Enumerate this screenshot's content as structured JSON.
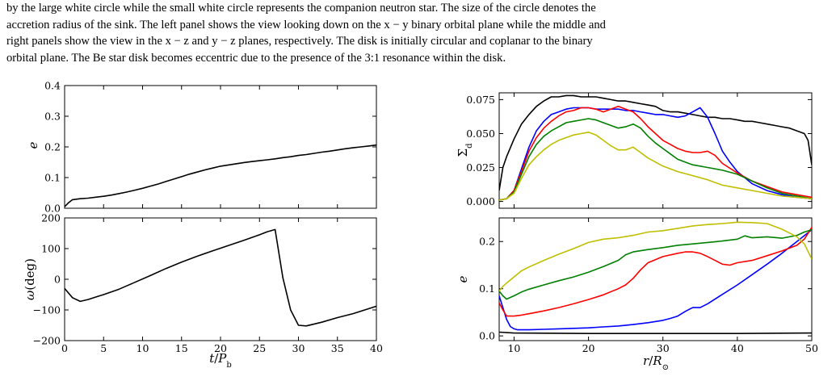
{
  "caption": {
    "lines": [
      "by the large white circle while the small white circle represents the companion neutron star. The size of the circle denotes the",
      "accretion radius of the sink. The left panel shows the view looking down on the x − y binary orbital plane while the middle and",
      "right panels show the view in the x − z and y − z planes, respectively. The disk is initially circular and coplanar to the binary",
      "orbital plane. The Be star disk becomes eccentric due to the presence of the 3:1 resonance within the disk."
    ]
  },
  "chart_data": [
    {
      "type": "line",
      "panel": "top-left",
      "ylabel": "e",
      "xlim": [
        0,
        40
      ],
      "ylim": [
        0,
        0.4
      ],
      "xticks": [],
      "yticks": [
        "0.0",
        "0.1",
        "0.2",
        "0.3",
        "0.4"
      ],
      "grid": false,
      "series": [
        {
          "color": "#000000",
          "x": [
            0,
            0.5,
            1,
            2,
            3,
            4,
            5,
            6,
            7,
            8,
            9,
            10,
            11,
            12,
            13,
            14,
            15,
            16,
            17,
            18,
            19,
            20,
            21,
            22,
            23,
            24,
            25,
            26,
            27,
            28,
            29,
            30,
            31,
            32,
            33,
            34,
            35,
            36,
            37,
            38,
            39,
            40
          ],
          "y": [
            0.005,
            0.018,
            0.028,
            0.031,
            0.033,
            0.036,
            0.039,
            0.043,
            0.048,
            0.053,
            0.059,
            0.065,
            0.072,
            0.079,
            0.087,
            0.095,
            0.103,
            0.111,
            0.118,
            0.125,
            0.131,
            0.137,
            0.141,
            0.145,
            0.149,
            0.152,
            0.155,
            0.158,
            0.161,
            0.165,
            0.168,
            0.172,
            0.175,
            0.179,
            0.183,
            0.186,
            0.19,
            0.194,
            0.197,
            0.2,
            0.203,
            0.206
          ]
        }
      ]
    },
    {
      "type": "line",
      "panel": "bottom-left",
      "xlabel": "t/P_b",
      "ylabel": "ω(deg)",
      "xlim": [
        0,
        40
      ],
      "ylim": [
        -200,
        200
      ],
      "xticks": [
        "0",
        "5",
        "10",
        "15",
        "20",
        "25",
        "30",
        "35",
        "40"
      ],
      "yticks": [
        "−200",
        "−100",
        "0",
        "100",
        "200"
      ],
      "grid": false,
      "series": [
        {
          "color": "#000000",
          "x": [
            0,
            1,
            2,
            3,
            4,
            5,
            7,
            9,
            11,
            13,
            15,
            17,
            19,
            21,
            23,
            25,
            26,
            27,
            28,
            29,
            30,
            31,
            33,
            35,
            37,
            40
          ],
          "y": [
            -30,
            -60,
            -72,
            -66,
            -58,
            -50,
            -32,
            -10,
            12,
            35,
            56,
            75,
            93,
            110,
            127,
            145,
            155,
            162,
            5,
            -100,
            -150,
            -152,
            -140,
            -125,
            -112,
            -88
          ]
        }
      ]
    },
    {
      "type": "line",
      "panel": "top-right",
      "ylabel": "Σ_d",
      "xlim": [
        8,
        50
      ],
      "ylim": [
        -0.005,
        0.08
      ],
      "xticks": [],
      "yticks": [
        "0.000",
        "0.025",
        "0.050",
        "0.075"
      ],
      "grid": false,
      "series": [
        {
          "color": "#000000",
          "x": [
            8,
            8.5,
            9,
            10,
            11,
            12,
            13,
            14,
            15,
            16,
            17,
            18,
            19,
            20,
            21,
            22,
            23,
            24,
            25,
            26,
            27,
            28,
            29,
            30,
            31,
            32,
            33,
            34,
            35,
            36,
            37,
            38,
            39,
            40,
            41,
            42,
            43,
            44,
            45,
            46,
            47,
            48,
            49,
            49.5,
            50
          ],
          "y": [
            0.008,
            0.025,
            0.033,
            0.046,
            0.057,
            0.064,
            0.07,
            0.074,
            0.077,
            0.077,
            0.078,
            0.078,
            0.077,
            0.077,
            0.077,
            0.076,
            0.075,
            0.074,
            0.074,
            0.073,
            0.072,
            0.071,
            0.07,
            0.067,
            0.066,
            0.066,
            0.065,
            0.064,
            0.063,
            0.062,
            0.062,
            0.061,
            0.061,
            0.06,
            0.059,
            0.059,
            0.058,
            0.057,
            0.056,
            0.055,
            0.054,
            0.052,
            0.05,
            0.045,
            0.027
          ]
        },
        {
          "color": "#0000ff",
          "x": [
            8,
            9,
            10,
            11,
            12,
            13,
            14,
            15,
            16,
            17,
            18,
            19,
            20,
            21,
            22,
            23,
            24,
            25,
            26,
            27,
            28,
            29,
            30,
            31,
            32,
            33,
            34,
            35,
            36,
            37,
            38,
            39,
            40,
            42,
            44,
            46,
            48,
            50
          ],
          "y": [
            0.001,
            0.002,
            0.008,
            0.024,
            0.04,
            0.052,
            0.059,
            0.064,
            0.066,
            0.068,
            0.069,
            0.069,
            0.069,
            0.068,
            0.068,
            0.068,
            0.068,
            0.067,
            0.067,
            0.066,
            0.065,
            0.064,
            0.064,
            0.063,
            0.062,
            0.063,
            0.066,
            0.069,
            0.062,
            0.05,
            0.037,
            0.029,
            0.022,
            0.013,
            0.008,
            0.005,
            0.003,
            0.002
          ]
        },
        {
          "color": "#ff0000",
          "x": [
            8,
            9,
            10,
            11,
            12,
            13,
            14,
            15,
            16,
            17,
            18,
            19,
            20,
            21,
            22,
            23,
            24,
            25,
            26,
            27,
            28,
            29,
            30,
            31,
            32,
            33,
            34,
            35,
            36,
            37,
            38,
            40,
            42,
            44,
            46,
            48,
            50
          ],
          "y": [
            0.001,
            0.002,
            0.008,
            0.022,
            0.037,
            0.047,
            0.054,
            0.059,
            0.063,
            0.066,
            0.067,
            0.069,
            0.069,
            0.068,
            0.066,
            0.068,
            0.07,
            0.068,
            0.066,
            0.061,
            0.055,
            0.05,
            0.045,
            0.042,
            0.039,
            0.037,
            0.036,
            0.036,
            0.037,
            0.034,
            0.028,
            0.021,
            0.015,
            0.011,
            0.007,
            0.005,
            0.003
          ]
        },
        {
          "color": "#008000",
          "x": [
            8,
            9,
            10,
            11,
            12,
            13,
            14,
            15,
            16,
            17,
            18,
            19,
            20,
            21,
            22,
            23,
            24,
            25,
            26,
            27,
            28,
            29,
            30,
            31,
            32,
            34,
            36,
            38,
            40,
            42,
            44,
            46,
            48,
            50
          ],
          "y": [
            0.001,
            0.002,
            0.007,
            0.02,
            0.033,
            0.042,
            0.048,
            0.052,
            0.055,
            0.058,
            0.059,
            0.06,
            0.061,
            0.06,
            0.058,
            0.056,
            0.054,
            0.055,
            0.057,
            0.054,
            0.048,
            0.043,
            0.039,
            0.035,
            0.031,
            0.027,
            0.025,
            0.023,
            0.02,
            0.015,
            0.01,
            0.006,
            0.004,
            0.002
          ]
        },
        {
          "color": "#bfbf00",
          "x": [
            8,
            9,
            10,
            11,
            12,
            13,
            14,
            15,
            16,
            17,
            18,
            19,
            20,
            21,
            22,
            23,
            24,
            25,
            26,
            27,
            28,
            29,
            30,
            32,
            34,
            36,
            38,
            40,
            42,
            44,
            46,
            48,
            50
          ],
          "y": [
            0.001,
            0.002,
            0.006,
            0.017,
            0.027,
            0.033,
            0.038,
            0.042,
            0.045,
            0.047,
            0.049,
            0.05,
            0.051,
            0.049,
            0.045,
            0.041,
            0.038,
            0.038,
            0.04,
            0.036,
            0.032,
            0.029,
            0.026,
            0.022,
            0.019,
            0.016,
            0.012,
            0.01,
            0.008,
            0.006,
            0.004,
            0.003,
            0.002
          ]
        }
      ]
    },
    {
      "type": "line",
      "panel": "bottom-right",
      "xlabel": "r/R_⊙",
      "ylabel": "e",
      "xlim": [
        8,
        50
      ],
      "ylim": [
        -0.01,
        0.25
      ],
      "xticks": [
        "10",
        "20",
        "30",
        "40",
        "50"
      ],
      "yticks": [
        "0.0",
        "0.1",
        "0.2"
      ],
      "grid": false,
      "series": [
        {
          "color": "#000000",
          "x": [
            8,
            10,
            20,
            30,
            40,
            50
          ],
          "y": [
            0.008,
            0.006,
            0.005,
            0.005,
            0.005,
            0.006
          ]
        },
        {
          "color": "#0000ff",
          "x": [
            8,
            8.5,
            9,
            9.5,
            10,
            10.5,
            11,
            12,
            14,
            16,
            18,
            20,
            22,
            24,
            26,
            28,
            30,
            31,
            32,
            33,
            34,
            35,
            36,
            38,
            40,
            42,
            44,
            46,
            48,
            50
          ],
          "y": [
            0.085,
            0.06,
            0.035,
            0.02,
            0.015,
            0.013,
            0.013,
            0.013,
            0.014,
            0.015,
            0.016,
            0.017,
            0.019,
            0.021,
            0.024,
            0.028,
            0.033,
            0.037,
            0.042,
            0.052,
            0.06,
            0.06,
            0.068,
            0.088,
            0.108,
            0.13,
            0.152,
            0.175,
            0.2,
            0.225
          ]
        },
        {
          "color": "#ff0000",
          "x": [
            8,
            8.5,
            9,
            10,
            11,
            12,
            14,
            16,
            18,
            20,
            22,
            24,
            25,
            26,
            27,
            28,
            30,
            32,
            33,
            34,
            35,
            36,
            37,
            38,
            39,
            40,
            42,
            44,
            46,
            48,
            49,
            50
          ],
          "y": [
            0.07,
            0.055,
            0.042,
            0.042,
            0.044,
            0.047,
            0.053,
            0.06,
            0.068,
            0.077,
            0.087,
            0.1,
            0.108,
            0.122,
            0.14,
            0.155,
            0.168,
            0.175,
            0.178,
            0.178,
            0.175,
            0.168,
            0.16,
            0.152,
            0.15,
            0.155,
            0.16,
            0.17,
            0.18,
            0.192,
            0.205,
            0.23
          ]
        },
        {
          "color": "#008000",
          "x": [
            8,
            8.5,
            9,
            10,
            11,
            12,
            14,
            16,
            18,
            20,
            22,
            24,
            25,
            26,
            28,
            30,
            32,
            34,
            36,
            38,
            40,
            41,
            42,
            44,
            46,
            47,
            48,
            49,
            50
          ],
          "y": [
            0.095,
            0.085,
            0.078,
            0.085,
            0.093,
            0.099,
            0.108,
            0.117,
            0.125,
            0.135,
            0.147,
            0.16,
            0.172,
            0.178,
            0.183,
            0.187,
            0.192,
            0.195,
            0.198,
            0.201,
            0.205,
            0.212,
            0.208,
            0.21,
            0.207,
            0.21,
            0.213,
            0.22,
            0.225
          ]
        },
        {
          "color": "#bfbf00",
          "x": [
            8,
            8.5,
            9,
            10,
            11,
            12,
            14,
            16,
            18,
            20,
            22,
            24,
            26,
            28,
            30,
            32,
            34,
            36,
            38,
            40,
            42,
            44,
            45,
            46,
            47,
            48,
            49,
            50
          ],
          "y": [
            0.095,
            0.105,
            0.112,
            0.125,
            0.138,
            0.146,
            0.16,
            0.173,
            0.185,
            0.198,
            0.205,
            0.208,
            0.213,
            0.22,
            0.223,
            0.228,
            0.233,
            0.236,
            0.238,
            0.241,
            0.24,
            0.238,
            0.232,
            0.226,
            0.218,
            0.21,
            0.195,
            0.163
          ]
        }
      ]
    }
  ]
}
